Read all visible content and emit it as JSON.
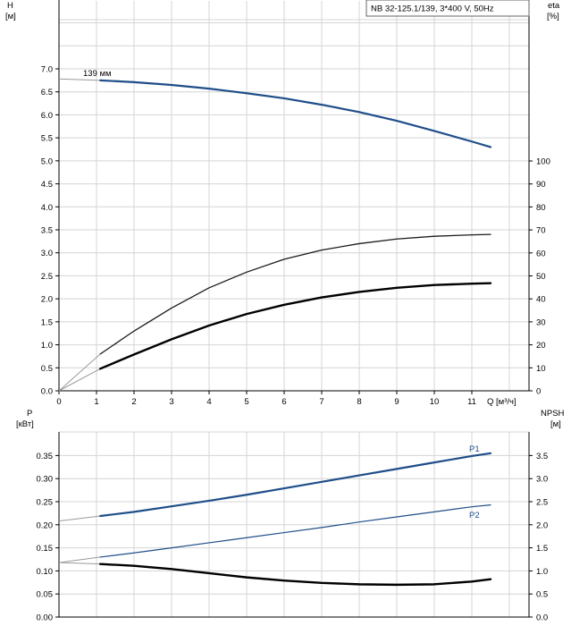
{
  "title": "NB 32-125.1/139, 3*400 V, 50Hz",
  "chart_data": [
    {
      "type": "line",
      "name": "top",
      "xlabel": "Q [м³/ч]",
      "xlim": [
        0,
        12
      ],
      "xticks": [
        0,
        1,
        2,
        3,
        4,
        5,
        6,
        7,
        8,
        9,
        10,
        11
      ],
      "ylabel_left": "H",
      "ylabel_left_unit": "[м]",
      "ylim_left": [
        0,
        7.0
      ],
      "yticks_left": [
        "0.0",
        "0.5",
        "1.0",
        "1.5",
        "2.0",
        "2.5",
        "3.0",
        "3.5",
        "4.0",
        "4.5",
        "5.0",
        "5.5",
        "6.0",
        "6.5",
        "7.0"
      ],
      "ylabel_right": "eta",
      "ylabel_right_unit": "[%]",
      "ylim_right": [
        0,
        100
      ],
      "yticks_right": [
        "0",
        "10",
        "20",
        "30",
        "40",
        "50",
        "60",
        "70",
        "80",
        "90",
        "100"
      ],
      "grid": true,
      "annotation": "139 мм",
      "series": [
        {
          "name": "139 мм",
          "axis": "left",
          "color": "#1f4e89",
          "ext_x": [
            0,
            1.1
          ],
          "ext_y": [
            6.78,
            6.75
          ],
          "x": [
            1.1,
            2,
            3,
            4,
            5,
            6,
            7,
            8,
            9,
            10,
            11,
            11.5
          ],
          "y": [
            6.75,
            6.71,
            6.65,
            6.57,
            6.47,
            6.36,
            6.22,
            6.06,
            5.87,
            5.65,
            5.42,
            5.3
          ]
        },
        {
          "axis": "left",
          "color": "#1a1a1a",
          "ext_x": [
            0,
            1.1
          ],
          "ext_y": [
            0,
            0.8
          ],
          "x": [
            1.1,
            2,
            3,
            4,
            5,
            6,
            7,
            8,
            9,
            10,
            11,
            11.5
          ],
          "y": [
            0.8,
            1.3,
            1.8,
            2.24,
            2.58,
            2.86,
            3.06,
            3.2,
            3.3,
            3.36,
            3.39,
            3.4
          ]
        },
        {
          "axis": "left",
          "color": "#000000",
          "ext_x": [
            0,
            1.1
          ],
          "ext_y": [
            0,
            0.48
          ],
          "x": [
            1.1,
            2,
            3,
            4,
            5,
            6,
            7,
            8,
            9,
            10,
            11,
            11.5
          ],
          "y": [
            0.48,
            0.79,
            1.12,
            1.42,
            1.67,
            1.87,
            2.03,
            2.15,
            2.24,
            2.3,
            2.33,
            2.34
          ]
        }
      ]
    },
    {
      "type": "line",
      "name": "bottom",
      "xlim": [
        0,
        12
      ],
      "ylabel_left": "P",
      "ylabel_left_unit": "[кВт]",
      "ylim_left": [
        0,
        0.4
      ],
      "yticks_left": [
        "0.00",
        "0.05",
        "0.10",
        "0.15",
        "0.20",
        "0.25",
        "0.30",
        "0.35"
      ],
      "ylabel_right": "NPSH",
      "ylabel_right_unit": "[м]",
      "ylim_right": [
        0,
        4.0
      ],
      "yticks_right": [
        "0.0",
        "0.5",
        "1.0",
        "1.5",
        "2.0",
        "2.5",
        "3.0",
        "3.5"
      ],
      "grid": true,
      "series": [
        {
          "name": "P1",
          "axis": "left",
          "color": "#1f4e89",
          "ext_x": [
            0,
            1.1
          ],
          "ext_y": [
            0.208,
            0.219
          ],
          "x": [
            1.1,
            2,
            3,
            4,
            5,
            6,
            7,
            8,
            9,
            10,
            11,
            11.5
          ],
          "y": [
            0.219,
            0.228,
            0.24,
            0.252,
            0.265,
            0.279,
            0.293,
            0.307,
            0.321,
            0.335,
            0.349,
            0.355
          ]
        },
        {
          "name": "P2",
          "axis": "left",
          "color": "#1f4e89",
          "ext_x": [
            0,
            1.1
          ],
          "ext_y": [
            0.118,
            0.13
          ],
          "x": [
            1.1,
            2,
            3,
            4,
            5,
            6,
            7,
            8,
            9,
            10,
            11,
            11.5
          ],
          "y": [
            0.13,
            0.139,
            0.15,
            0.161,
            0.172,
            0.183,
            0.194,
            0.206,
            0.217,
            0.228,
            0.239,
            0.243
          ]
        },
        {
          "axis": "left",
          "color": "#000000",
          "ext_x": [
            0,
            1.1
          ],
          "ext_y": [
            0.118,
            0.115
          ],
          "x": [
            1.1,
            2,
            3,
            4,
            5,
            6,
            7,
            8,
            9,
            10,
            11,
            11.5
          ],
          "y": [
            0.115,
            0.111,
            0.104,
            0.095,
            0.086,
            0.079,
            0.074,
            0.071,
            0.07,
            0.071,
            0.077,
            0.082
          ]
        }
      ]
    }
  ]
}
